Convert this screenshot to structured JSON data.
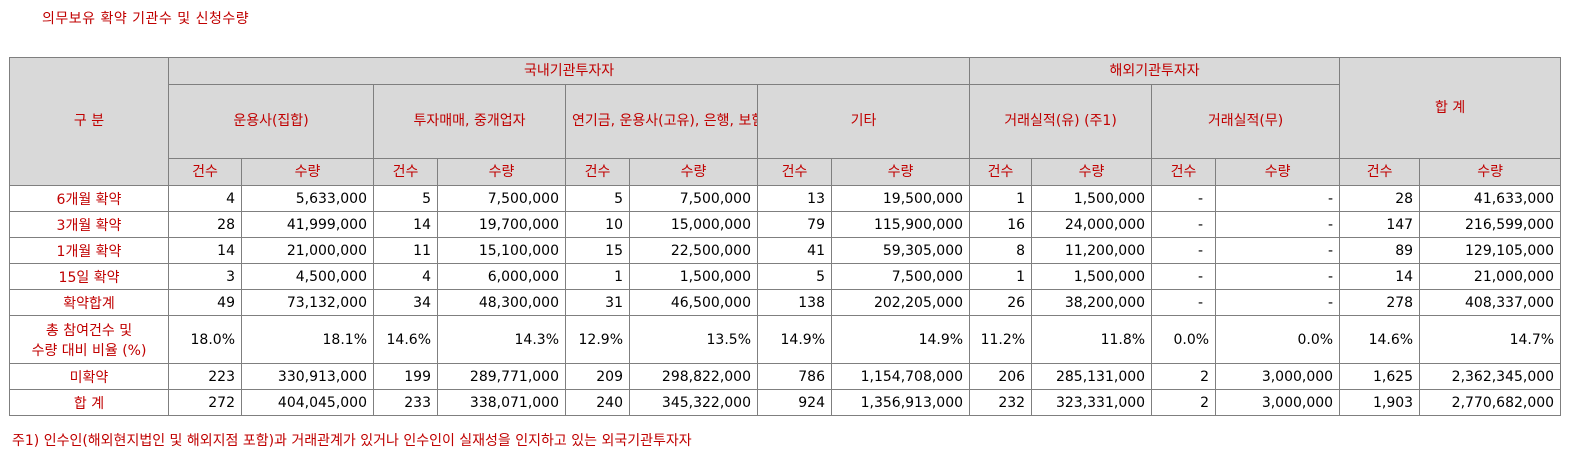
{
  "title": "의무보유 확약 기관수 및 신청수량",
  "headers": {
    "category": "구 분",
    "domestic": "국내기관투자자",
    "foreign": "해외기관투자자",
    "total": "합 계",
    "groups": [
      {
        "line1": "운용사(집합)",
        "line2": "",
        "line3": ""
      },
      {
        "line1": "투자매매,",
        "line2": "중개업자",
        "line3": ""
      },
      {
        "line1": "연기금,",
        "line2": "운용사(고유),",
        "line3": "은행, 보험"
      },
      {
        "line1": "기타",
        "line2": "",
        "line3": ""
      },
      {
        "line1": "거래실적(유)",
        "line2": "(주1)",
        "line3": ""
      },
      {
        "line1": "거래실적(무)",
        "line2": "",
        "line3": ""
      }
    ],
    "count": "건수",
    "quantity": "수량"
  },
  "rows": [
    {
      "label": "6개월 확약",
      "label2": "",
      "cells": [
        "4",
        "5,633,000",
        "5",
        "7,500,000",
        "5",
        "7,500,000",
        "13",
        "19,500,000",
        "1",
        "1,500,000",
        "-",
        "-",
        "28",
        "41,633,000"
      ]
    },
    {
      "label": "3개월 확약",
      "label2": "",
      "cells": [
        "28",
        "41,999,000",
        "14",
        "19,700,000",
        "10",
        "15,000,000",
        "79",
        "115,900,000",
        "16",
        "24,000,000",
        "-",
        "-",
        "147",
        "216,599,000"
      ]
    },
    {
      "label": "1개월 확약",
      "label2": "",
      "cells": [
        "14",
        "21,000,000",
        "11",
        "15,100,000",
        "15",
        "22,500,000",
        "41",
        "59,305,000",
        "8",
        "11,200,000",
        "-",
        "-",
        "89",
        "129,105,000"
      ]
    },
    {
      "label": "15일 확약",
      "label2": "",
      "cells": [
        "3",
        "4,500,000",
        "4",
        "6,000,000",
        "1",
        "1,500,000",
        "5",
        "7,500,000",
        "1",
        "1,500,000",
        "-",
        "-",
        "14",
        "21,000,000"
      ]
    },
    {
      "label": "확약합계",
      "label2": "",
      "cells": [
        "49",
        "73,132,000",
        "34",
        "48,300,000",
        "31",
        "46,500,000",
        "138",
        "202,205,000",
        "26",
        "38,200,000",
        "-",
        "-",
        "278",
        "408,337,000"
      ]
    },
    {
      "label": "총 참여건수 및",
      "label2": "수량 대비 비율 (%)",
      "cells": [
        "18.0%",
        "18.1%",
        "14.6%",
        "14.3%",
        "12.9%",
        "13.5%",
        "14.9%",
        "14.9%",
        "11.2%",
        "11.8%",
        "0.0%",
        "0.0%",
        "14.6%",
        "14.7%"
      ]
    },
    {
      "label": "미확약",
      "label2": "",
      "cells": [
        "223",
        "330,913,000",
        "199",
        "289,771,000",
        "209",
        "298,822,000",
        "786",
        "1,154,708,000",
        "206",
        "285,131,000",
        "2",
        "3,000,000",
        "1,625",
        "2,362,345,000"
      ]
    },
    {
      "label": "합 계",
      "label2": "",
      "cells": [
        "272",
        "404,045,000",
        "233",
        "338,071,000",
        "240",
        "345,322,000",
        "924",
        "1,356,913,000",
        "232",
        "323,331,000",
        "2",
        "3,000,000",
        "1,903",
        "2,770,682,000"
      ]
    }
  ],
  "note": "주1) 인수인(해외현지법인 및 해외지점 포함)과 거래관계가 있거나 인수인이 실재성을 인지하고 있는 외국기관투자자"
}
